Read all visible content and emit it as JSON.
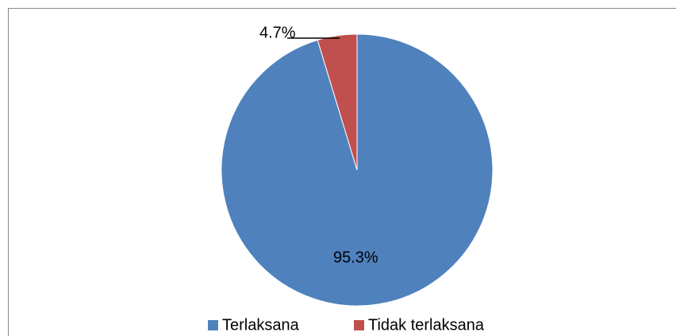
{
  "chart_data": {
    "type": "pie",
    "categories": [
      "Terlaksana",
      "Tidak terlaksana"
    ],
    "values": [
      95.3,
      4.7
    ],
    "value_labels": [
      "95.3%",
      "4.7%"
    ],
    "colors": [
      "#4f81bd",
      "#c0504d"
    ],
    "legend": "bottom"
  }
}
